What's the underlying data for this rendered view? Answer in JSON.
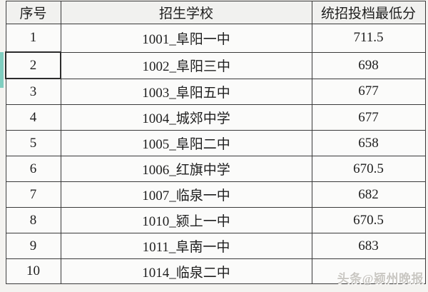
{
  "table": {
    "headers": {
      "no": "序号",
      "school": "招生学校",
      "score": "统招投档最低分"
    },
    "rows": [
      {
        "no": "1",
        "school": "1001_阜阳一中",
        "score": "711.5"
      },
      {
        "no": "2",
        "school": "1002_阜阳三中",
        "score": "698"
      },
      {
        "no": "3",
        "school": "1003_阜阳五中",
        "score": "677"
      },
      {
        "no": "4",
        "school": "1004_城郊中学",
        "score": "677"
      },
      {
        "no": "5",
        "school": "1005_阜阳二中",
        "score": "658"
      },
      {
        "no": "6",
        "school": "1006_红旗中学",
        "score": "670.5"
      },
      {
        "no": "7",
        "school": "1007_临泉一中",
        "score": "682"
      },
      {
        "no": "8",
        "school": "1010_颍上一中",
        "score": "670.5"
      },
      {
        "no": "9",
        "school": "1011_阜南一中",
        "score": "683"
      },
      {
        "no": "10",
        "school": "1014_临泉二中",
        "score": ""
      }
    ]
  },
  "selection": {
    "selected_row_no": "2",
    "indicator_color": "#80cec0"
  },
  "watermark": {
    "text": "头条@颍州晚报"
  },
  "colors": {
    "border": "#3a3a3a",
    "header_bg": "#f1f1ef",
    "cell_bg": "#fbfbfa",
    "page_bg": "#f4f3f0",
    "selection_teal": "#80cec0",
    "watermark_gray": "#c9c7c2"
  }
}
